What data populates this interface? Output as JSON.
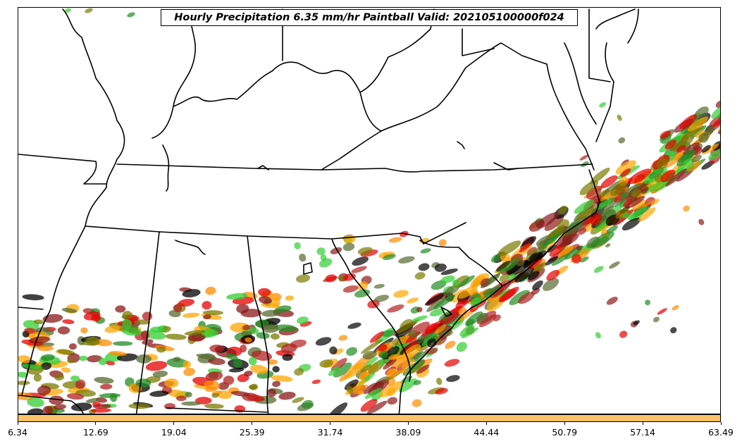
{
  "title": "Hourly Precipitation 6.35 mm/hr Paintball Valid: 202105100000f024",
  "colorbar": {
    "color": "#ffc267",
    "tick_labels": [
      "6.34",
      "12.69",
      "19.04",
      "25.39",
      "31.74",
      "38.09",
      "44.44",
      "50.79",
      "57.14",
      "63.49"
    ]
  },
  "member_colors": [
    "#e60000",
    "#8b1a1a",
    "#228b22",
    "#32cd32",
    "#ff8c00",
    "#ffa500",
    "#7a7a00",
    "#000000",
    "#b22222",
    "#556b2f"
  ],
  "map_features": [
    "state-borders",
    "coastline",
    "river-borders"
  ]
}
